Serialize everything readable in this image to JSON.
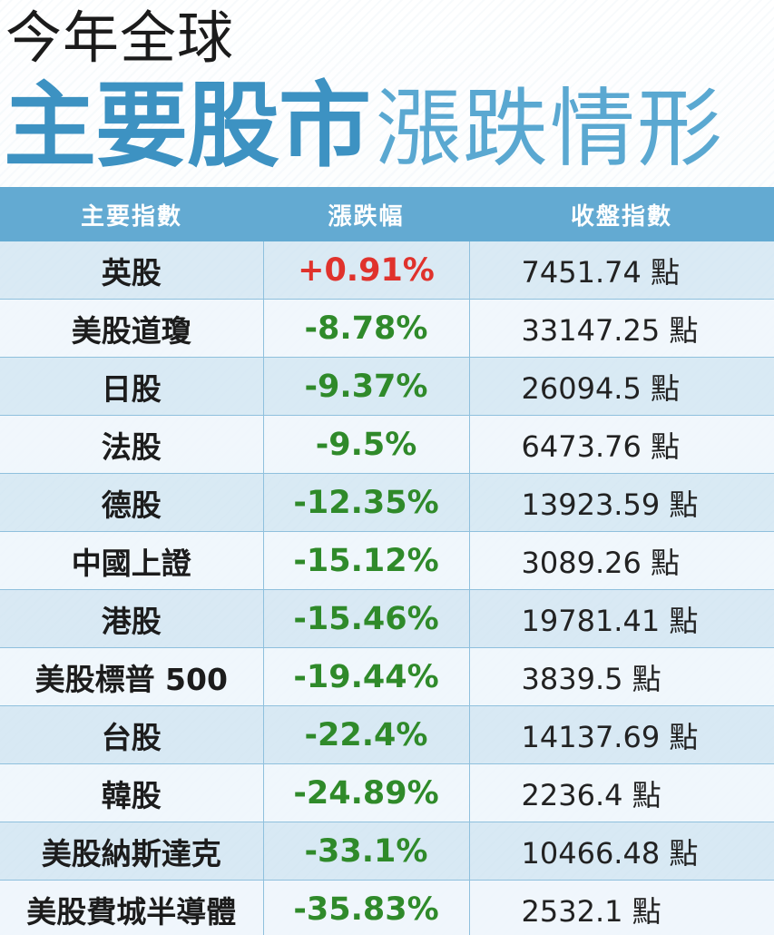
{
  "title": {
    "line1": "今年全球",
    "line2_strong": "主要股市",
    "line2_light": "漲跌情形"
  },
  "colors": {
    "accent": "#3d92c2",
    "header_bg": "#63aad2",
    "up": "#e0322c",
    "down": "#2f8a2a"
  },
  "table": {
    "headers": [
      "主要指數",
      "漲跌幅",
      "收盤指數"
    ],
    "rows": [
      {
        "name": "英股",
        "change": "+0.91%",
        "close": "7451.74 點",
        "direction": "up"
      },
      {
        "name": "美股道瓊",
        "change": "-8.78%",
        "close": "33147.25 點",
        "direction": "down"
      },
      {
        "name": "日股",
        "change": "-9.37%",
        "close": "26094.5 點",
        "direction": "down"
      },
      {
        "name": "法股",
        "change": "-9.5%",
        "close": "6473.76 點",
        "direction": "down"
      },
      {
        "name": "德股",
        "change": "-12.35%",
        "close": "13923.59 點",
        "direction": "down"
      },
      {
        "name": "中國上證",
        "change": "-15.12%",
        "close": "3089.26 點",
        "direction": "down"
      },
      {
        "name": "港股",
        "change": "-15.46%",
        "close": "19781.41 點",
        "direction": "down"
      },
      {
        "name": "美股標普 500",
        "change": "-19.44%",
        "close": "3839.5 點",
        "direction": "down"
      },
      {
        "name": "台股",
        "change": "-22.4%",
        "close": "14137.69 點",
        "direction": "down"
      },
      {
        "name": "韓股",
        "change": "-24.89%",
        "close": "2236.4 點",
        "direction": "down"
      },
      {
        "name": "美股納斯達克",
        "change": "-33.1%",
        "close": "10466.48 點",
        "direction": "down"
      },
      {
        "name": "美股費城半導體",
        "change": "-35.83%",
        "close": "2532.1 點",
        "direction": "down"
      }
    ]
  }
}
